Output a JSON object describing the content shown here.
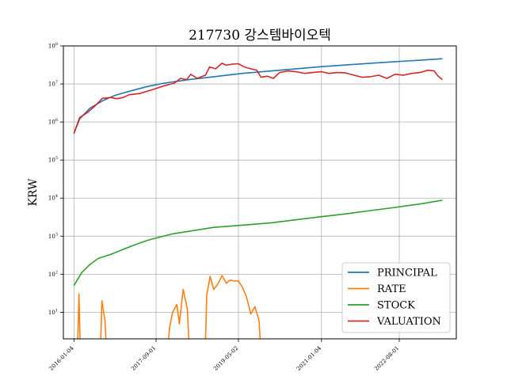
{
  "chart_data": {
    "type": "line",
    "title": "217730 강스템바이오텍",
    "xlabel": "",
    "ylabel": "KRW",
    "yscale": "log",
    "ylim": [
      2,
      100000000
    ],
    "xlim": [
      "2015-10-18",
      "2023-09-26"
    ],
    "grid": true,
    "legend_position": "bottom-right",
    "x_ticks": [
      "2016-01-04",
      "2017-09-01",
      "2019-05-02",
      "2021-01-04",
      "2022-08-01"
    ],
    "y_ticks": [
      {
        "value": 10,
        "label": "10^1"
      },
      {
        "value": 100,
        "label": "10^2"
      },
      {
        "value": 1000,
        "label": "10^3"
      },
      {
        "value": 10000,
        "label": "10^4"
      },
      {
        "value": 100000,
        "label": "10^5"
      },
      {
        "value": 1000000,
        "label": "10^6"
      },
      {
        "value": 10000000,
        "label": "10^7"
      },
      {
        "value": 100000000,
        "label": "10^8"
      }
    ],
    "series": [
      {
        "name": "PRINCIPAL",
        "color": "#1f77b4",
        "points": [
          [
            "2016-01-04",
            500000
          ],
          [
            "2016-02-15",
            1200000
          ],
          [
            "2016-05-01",
            2300000
          ],
          [
            "2016-08-01",
            3600000
          ],
          [
            "2016-11-01",
            5000000
          ],
          [
            "2017-03-01",
            6600000
          ],
          [
            "2017-07-01",
            8600000
          ],
          [
            "2017-11-01",
            10500000
          ],
          [
            "2018-05-01",
            13000000
          ],
          [
            "2018-11-01",
            15500000
          ],
          [
            "2019-06-01",
            19000000
          ],
          [
            "2020-01-01",
            22000000
          ],
          [
            "2020-07-01",
            25000000
          ],
          [
            "2021-01-04",
            28500000
          ],
          [
            "2021-07-01",
            31500000
          ],
          [
            "2022-01-01",
            35000000
          ],
          [
            "2022-07-01",
            38500000
          ],
          [
            "2023-01-01",
            42000000
          ],
          [
            "2023-06-15",
            46000000
          ]
        ]
      },
      {
        "name": "RATE",
        "color": "#ff7f0e",
        "segments": [
          [
            [
              "2016-02-01",
              1.5
            ],
            [
              "2016-02-10",
              30
            ],
            [
              "2016-02-18",
              1.5
            ]
          ],
          [
            [
              "2016-07-20",
              1.5
            ],
            [
              "2016-07-28",
              20
            ],
            [
              "2016-08-20",
              6
            ],
            [
              "2016-08-28",
              1.5
            ]
          ],
          [
            [
              "2017-12-01",
              1.5
            ],
            [
              "2017-12-10",
              4
            ],
            [
              "2018-01-01",
              10
            ],
            [
              "2018-02-01",
              16
            ],
            [
              "2018-02-20",
              5
            ],
            [
              "2018-03-20",
              40
            ],
            [
              "2018-04-20",
              12
            ],
            [
              "2018-05-01",
              1.5
            ]
          ],
          [
            [
              "2018-09-01",
              1.5
            ],
            [
              "2018-09-10",
              28
            ],
            [
              "2018-10-05",
              88
            ],
            [
              "2018-11-01",
              40
            ],
            [
              "2018-12-01",
              55
            ],
            [
              "2019-01-01",
              92
            ],
            [
              "2019-02-01",
              58
            ],
            [
              "2019-03-01",
              70
            ],
            [
              "2019-04-01",
              66
            ],
            [
              "2019-05-01",
              67
            ],
            [
              "2019-06-01",
              45
            ],
            [
              "2019-07-01",
              25
            ],
            [
              "2019-08-01",
              9
            ],
            [
              "2019-09-01",
              14
            ],
            [
              "2019-10-01",
              6
            ],
            [
              "2019-10-10",
              1.5
            ]
          ]
        ]
      },
      {
        "name": "STOCK",
        "color": "#2ca02c",
        "points": [
          [
            "2016-01-04",
            50
          ],
          [
            "2016-03-01",
            110
          ],
          [
            "2016-05-01",
            180
          ],
          [
            "2016-07-01",
            260
          ],
          [
            "2016-10-01",
            330
          ],
          [
            "2017-01-01",
            450
          ],
          [
            "2017-04-01",
            600
          ],
          [
            "2017-07-01",
            780
          ],
          [
            "2017-10-01",
            950
          ],
          [
            "2018-01-01",
            1150
          ],
          [
            "2018-06-01",
            1400
          ],
          [
            "2018-11-01",
            1700
          ],
          [
            "2019-06-01",
            1950
          ],
          [
            "2020-01-01",
            2250
          ],
          [
            "2020-07-01",
            2700
          ],
          [
            "2021-01-04",
            3250
          ],
          [
            "2021-07-01",
            3850
          ],
          [
            "2022-01-01",
            4700
          ],
          [
            "2022-07-01",
            5700
          ],
          [
            "2023-01-01",
            7000
          ],
          [
            "2023-06-15",
            8800
          ]
        ]
      },
      {
        "name": "VALUATION",
        "color": "#d62728",
        "points": [
          [
            "2016-01-04",
            500000
          ],
          [
            "2016-02-15",
            1300000
          ],
          [
            "2016-04-15",
            1800000
          ],
          [
            "2016-06-15",
            2800000
          ],
          [
            "2016-08-01",
            4200000
          ],
          [
            "2016-10-01",
            4400000
          ],
          [
            "2016-11-15",
            4100000
          ],
          [
            "2017-01-01",
            4400000
          ],
          [
            "2017-02-15",
            5200000
          ],
          [
            "2017-05-01",
            5600000
          ],
          [
            "2017-08-01",
            7000000
          ],
          [
            "2017-10-15",
            8600000
          ],
          [
            "2018-01-15",
            10500000
          ],
          [
            "2018-03-01",
            14000000
          ],
          [
            "2018-04-15",
            13000000
          ],
          [
            "2018-05-15",
            18000000
          ],
          [
            "2018-07-01",
            14000000
          ],
          [
            "2018-09-01",
            17000000
          ],
          [
            "2018-10-01",
            28000000
          ],
          [
            "2018-11-15",
            25000000
          ],
          [
            "2019-01-01",
            35000000
          ],
          [
            "2019-02-01",
            31000000
          ],
          [
            "2019-03-15",
            33000000
          ],
          [
            "2019-05-01",
            34000000
          ],
          [
            "2019-06-15",
            28000000
          ],
          [
            "2019-08-01",
            25000000
          ],
          [
            "2019-09-15",
            23000000
          ],
          [
            "2019-10-15",
            15000000
          ],
          [
            "2019-12-01",
            16000000
          ],
          [
            "2020-01-15",
            14000000
          ],
          [
            "2020-03-01",
            20000000
          ],
          [
            "2020-05-01",
            22000000
          ],
          [
            "2020-07-01",
            21000000
          ],
          [
            "2020-09-01",
            19000000
          ],
          [
            "2020-11-01",
            20000000
          ],
          [
            "2021-01-04",
            21000000
          ],
          [
            "2021-03-01",
            19000000
          ],
          [
            "2021-05-01",
            20000000
          ],
          [
            "2021-07-01",
            19500000
          ],
          [
            "2021-09-01",
            17000000
          ],
          [
            "2021-11-01",
            15000000
          ],
          [
            "2022-01-01",
            15500000
          ],
          [
            "2022-03-01",
            17000000
          ],
          [
            "2022-05-01",
            14000000
          ],
          [
            "2022-07-01",
            18000000
          ],
          [
            "2022-09-01",
            17000000
          ],
          [
            "2022-11-01",
            19000000
          ],
          [
            "2023-01-01",
            20000000
          ],
          [
            "2023-03-01",
            23000000
          ],
          [
            "2023-04-15",
            22000000
          ],
          [
            "2023-05-15",
            16000000
          ],
          [
            "2023-06-15",
            13000000
          ]
        ]
      }
    ]
  }
}
